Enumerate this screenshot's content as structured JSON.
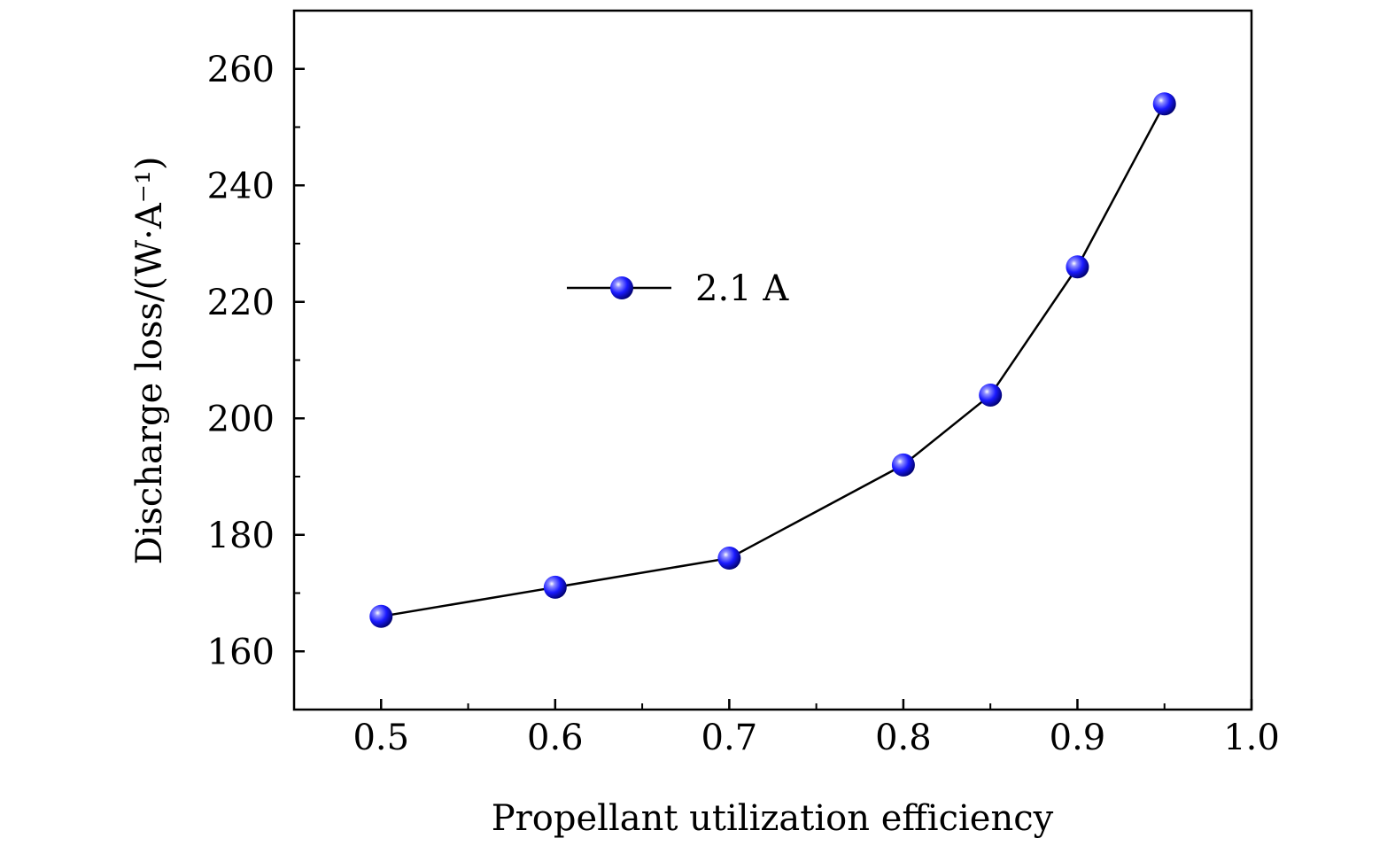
{
  "chart_data": {
    "type": "line",
    "title": "",
    "xlabel": "Propellant utilization efficiency",
    "ylabel": "Discharge loss/(W·A⁻¹)",
    "xlim": [
      0.45,
      1.0
    ],
    "ylim": [
      150,
      270
    ],
    "xticks": [
      "0.5",
      "0.6",
      "0.7",
      "0.8",
      "0.9",
      "1.0"
    ],
    "yticks": [
      "160",
      "180",
      "200",
      "220",
      "240",
      "260"
    ],
    "grid": false,
    "legend_position": "upper-left",
    "series": [
      {
        "name": "2.1 A",
        "color": "#1010dd",
        "marker": "circle",
        "x": [
          0.5,
          0.6,
          0.7,
          0.8,
          0.85,
          0.9,
          0.95
        ],
        "y": [
          166,
          171,
          176,
          192,
          204,
          226,
          254
        ]
      }
    ]
  }
}
